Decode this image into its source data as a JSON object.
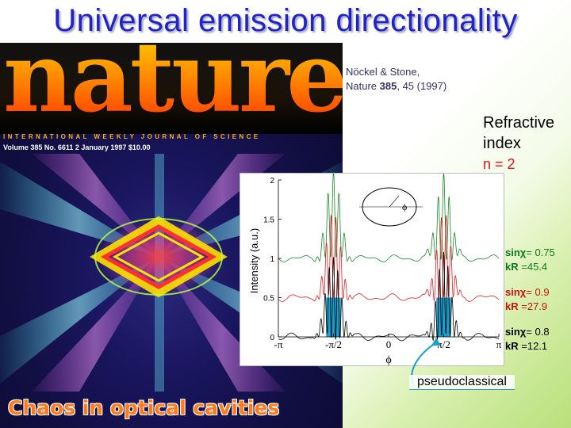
{
  "slide": {
    "title": "Universal emission directionality",
    "reference_line1": "Nöckel & Stone,",
    "reference_line2_prefix": "Nature ",
    "reference_volume": "385",
    "reference_line2_suffix": ", 45 (1997)",
    "refractive_label_line1": "Refractive",
    "refractive_label_line2": "index",
    "refractive_value": "n = 2",
    "pseudoclassical_label": "pseudoclassical"
  },
  "cover": {
    "masthead": "nature",
    "journal_subtitle": "INTERNATIONAL WEEKLY JOURNAL OF SCIENCE",
    "issue_info": "Volume 385   No. 6611   2 January 1997   $10.00",
    "headline": "Chaos in optical cavities"
  },
  "annotations": [
    {
      "sin_label": "sinχ",
      "sin_value": "= 0.75",
      "kr_label": "kR",
      "kr_value": "=45.4",
      "color": "#0a7a1a"
    },
    {
      "sin_label": "sinχ",
      "sin_value": "= 0.9",
      "kr_label": "kR",
      "kr_value": "=27.9",
      "color": "#d01010"
    },
    {
      "sin_label": "sinχ",
      "sin_value": "= 0.8",
      "kr_label": "kR",
      "kr_value": "=12.1",
      "color": "#000000"
    }
  ],
  "chart_data": {
    "type": "line",
    "ylabel": "Intensity (a.u.)",
    "xlabel": "ϕ",
    "x_ticks": [
      "-π",
      "-π/2",
      "0",
      "π/2",
      "π"
    ],
    "y_ticks": [
      "0",
      "0.5",
      "1",
      "1.5",
      "2"
    ],
    "xlim": [
      -3.1416,
      3.1416
    ],
    "ylim": [
      0,
      2
    ],
    "peak_positions": [
      -1.5708,
      1.5708
    ],
    "series": [
      {
        "baseline": 1.0,
        "peak": 2.1,
        "color": "#1a8a2a"
      },
      {
        "baseline": 0.5,
        "peak": 1.6,
        "color": "#e02020"
      },
      {
        "baseline": 0.0,
        "peak": 1.05,
        "color": "#000000"
      }
    ],
    "pseudoclassical_bars": [
      {
        "center": -1.5708,
        "height": 0.5,
        "color": "#1aa0d0"
      },
      {
        "center": 1.5708,
        "height": 0.5,
        "color": "#1aa0d0"
      }
    ],
    "inset_label": "ϕ"
  }
}
